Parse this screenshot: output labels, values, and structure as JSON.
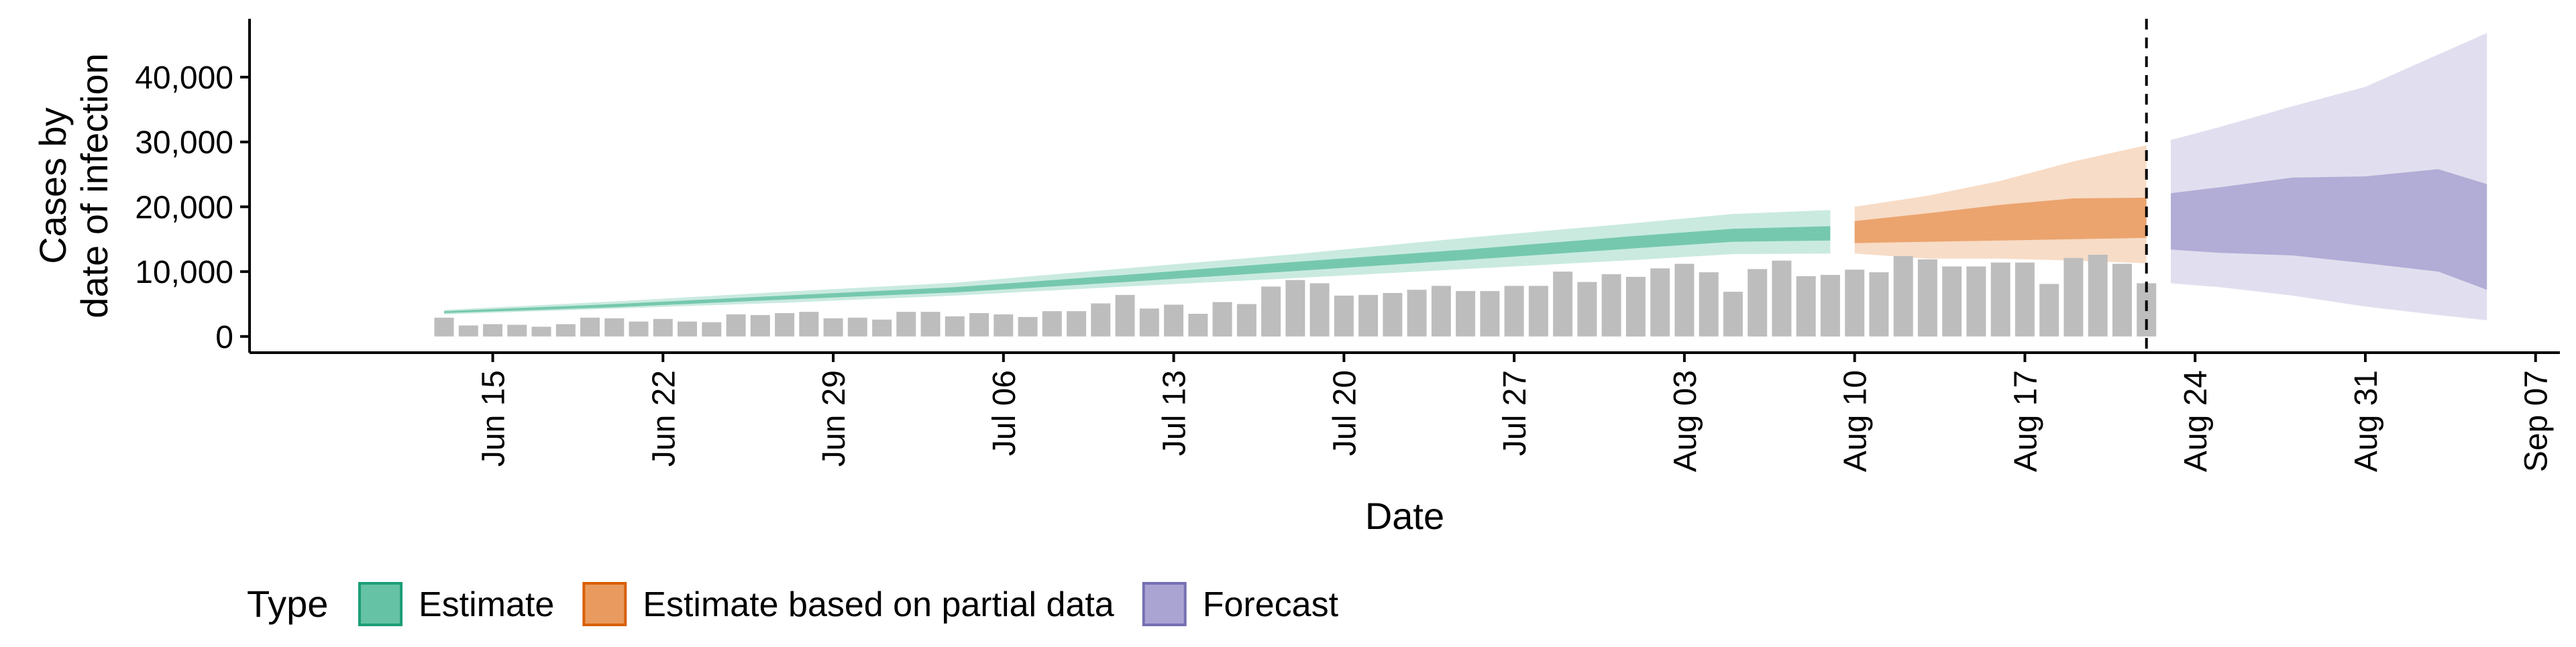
{
  "chart_data": {
    "type": "line",
    "xlabel": "Date",
    "ylabel_lines": [
      "Cases by",
      "date of infection"
    ],
    "y_ticks": [
      0,
      10000,
      20000,
      30000,
      40000
    ],
    "y_tick_labels": [
      "0",
      "10,000",
      "20,000",
      "30,000",
      "40,000"
    ],
    "ylim": [
      -2500,
      49000
    ],
    "xlim": [
      "2020-06-05",
      "2020-09-08"
    ],
    "x_ticks": [
      "2020-06-15",
      "2020-06-22",
      "2020-06-29",
      "2020-07-06",
      "2020-07-13",
      "2020-07-20",
      "2020-07-27",
      "2020-08-03",
      "2020-08-10",
      "2020-08-17",
      "2020-08-24",
      "2020-08-31",
      "2020-09-07"
    ],
    "x_tick_labels": [
      "Jun 15",
      "Jun 22",
      "Jun 29",
      "Jul 06",
      "Jul 13",
      "Jul 20",
      "Jul 27",
      "Aug 03",
      "Aug 10",
      "Aug 17",
      "Aug 24",
      "Aug 31",
      "Sep 07"
    ],
    "vline_date": "2020-08-22",
    "legend": {
      "title": "Type",
      "position": "bottom",
      "items": [
        {
          "label": "Estimate",
          "fill": "#66C2A5",
          "stroke": "#1B9E77"
        },
        {
          "label": "Estimate based on partial data",
          "fill": "#E99A5E",
          "stroke": "#D95F02"
        },
        {
          "label": "Forecast",
          "fill": "#A9A4D1",
          "stroke": "#7570B3"
        }
      ]
    },
    "bar_color": "#BDBDBD",
    "reported_cases": {
      "start_date": "2020-06-13",
      "values": [
        2900,
        1700,
        1900,
        1800,
        1500,
        1900,
        2900,
        2800,
        2300,
        2700,
        2300,
        2200,
        3400,
        3300,
        3600,
        3800,
        2800,
        2900,
        2600,
        3800,
        3800,
        3100,
        3600,
        3400,
        3000,
        3900,
        3900,
        5100,
        6400,
        4300,
        4900,
        3500,
        5300,
        5000,
        7700,
        8700,
        8200,
        6300,
        6400,
        6700,
        7200,
        7800,
        7000,
        7000,
        7800,
        7800,
        10000,
        8400,
        9600,
        9200,
        10500,
        11200,
        9900,
        6900,
        10400,
        11700,
        9300,
        9500,
        10300,
        9900,
        12400,
        11900,
        10800,
        10800,
        11400,
        11400,
        8100,
        12100,
        12600,
        11200,
        8200
      ]
    },
    "series": [
      {
        "name": "Estimate",
        "dates": [
          "2020-06-13",
          "2020-06-20",
          "2020-06-27",
          "2020-07-04",
          "2020-07-11",
          "2020-07-18",
          "2020-07-25",
          "2020-08-01",
          "2020-08-05",
          "2020-08-09"
        ],
        "median": [
          3800,
          4800,
          6000,
          7200,
          9000,
          10800,
          12600,
          14600,
          15600,
          16000
        ],
        "lower_90": [
          3400,
          4300,
          5200,
          6300,
          7700,
          9000,
          10400,
          11800,
          12700,
          12800
        ],
        "upper_90": [
          4100,
          5400,
          6900,
          8300,
          10500,
          12700,
          15200,
          17500,
          18900,
          19500
        ],
        "lower_50": [
          3600,
          4500,
          5700,
          6800,
          8400,
          10100,
          11800,
          13600,
          14600,
          14800
        ],
        "upper_50": [
          3900,
          5000,
          6300,
          7600,
          9500,
          11500,
          13400,
          15500,
          16600,
          17000
        ]
      },
      {
        "name": "Estimate based on partial data",
        "dates": [
          "2020-08-10",
          "2020-08-13",
          "2020-08-16",
          "2020-08-19",
          "2020-08-22"
        ],
        "median": [
          16000,
          17000,
          17800,
          18700,
          18700
        ],
        "lower_90": [
          12800,
          12000,
          12000,
          11700,
          11300
        ],
        "upper_90": [
          20000,
          21700,
          24000,
          27000,
          29500
        ],
        "lower_50": [
          14400,
          14600,
          14800,
          15000,
          15200
        ],
        "upper_50": [
          17800,
          19000,
          20300,
          21300,
          21400
        ]
      },
      {
        "name": "Forecast",
        "dates": [
          "2020-08-23",
          "2020-08-25",
          "2020-08-28",
          "2020-08-31",
          "2020-09-03",
          "2020-09-05"
        ],
        "median": [
          17000,
          18000,
          18500,
          18000,
          17500,
          16000
        ],
        "lower_90": [
          8200,
          7600,
          6300,
          4600,
          3300,
          2500
        ],
        "upper_90": [
          30300,
          32300,
          35500,
          38500,
          43500,
          46800
        ],
        "lower_50": [
          13400,
          12900,
          12500,
          11300,
          10000,
          7200
        ],
        "upper_50": [
          22100,
          23000,
          24500,
          24700,
          25800,
          23500
        ]
      }
    ]
  }
}
